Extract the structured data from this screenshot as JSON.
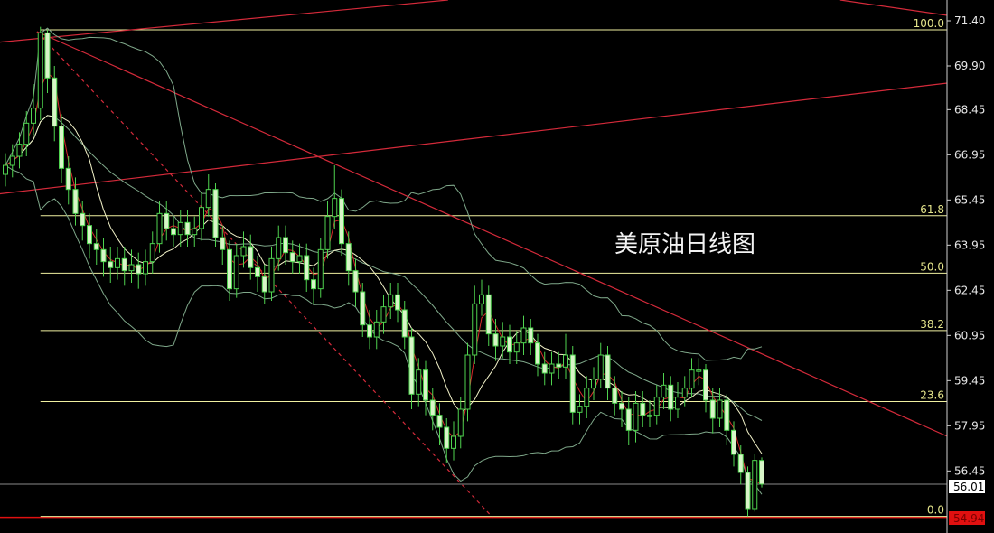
{
  "chart_data": {
    "type": "candlestick",
    "title": "美原油日线图",
    "ylim": [
      54.39,
      72.09
    ],
    "y_ticks": [
      "71.40",
      "69.90",
      "68.45",
      "66.95",
      "65.45",
      "63.95",
      "62.45",
      "60.95",
      "59.45",
      "57.95",
      "56.45"
    ],
    "current_price": "56.01",
    "low_marker": "54.94",
    "grid": false,
    "colors": {
      "background": "#000000",
      "candle": "#4fd34f",
      "bear_body": "#d8f5c8",
      "fast_ma": "#d42a2a",
      "slow_ma": "#f2f2c8",
      "bands": "#7fa88a",
      "trendline": "#d42a3a",
      "fibonacci": "#f0f0a0",
      "current_price_line": "#8a8a8a",
      "low_marker_bg": "#e01010"
    },
    "overlays": [
      "bollinger_bands",
      "fast_moving_average",
      "slow_moving_average"
    ],
    "fibonacci": {
      "high": 71.1,
      "low": 54.94,
      "start_index": 5,
      "levels": [
        {
          "value": 100.0,
          "label": "100.0"
        },
        {
          "value": 61.8,
          "label": "61.8"
        },
        {
          "value": 50.0,
          "label": "50.0"
        },
        {
          "value": 38.2,
          "label": "38.2"
        },
        {
          "value": 23.6,
          "label": "23.6"
        },
        {
          "value": 0.0,
          "label": "0.0"
        }
      ]
    },
    "trendlines": [
      {
        "from": [
          -1.3,
          70.68
        ],
        "to": [
          63.2,
          72.09
        ],
        "style": "solid"
      },
      {
        "from": [
          -1.3,
          65.64
        ],
        "to": [
          134.5,
          69.33
        ],
        "style": "solid"
      },
      {
        "from": [
          4.5,
          71.04
        ],
        "to": [
          134.5,
          57.6
        ],
        "style": "solid"
      },
      {
        "from": [
          119.2,
          72.09
        ],
        "to": [
          134.5,
          71.58
        ],
        "style": "solid"
      },
      {
        "from": [
          4.5,
          71.04
        ],
        "to": [
          69.6,
          54.9
        ],
        "style": "dashed"
      }
    ],
    "ohlc_columns": [
      "open",
      "high",
      "low",
      "close"
    ],
    "ohlc": [
      [
        66.3,
        67.0,
        65.9,
        66.6
      ],
      [
        66.6,
        67.3,
        66.2,
        66.9
      ],
      [
        66.9,
        67.7,
        66.5,
        67.3
      ],
      [
        67.3,
        68.4,
        66.9,
        68.0
      ],
      [
        68.0,
        69.3,
        67.6,
        68.5
      ],
      [
        68.5,
        71.2,
        68.1,
        71.0
      ],
      [
        71.0,
        71.1,
        69.0,
        69.5
      ],
      [
        69.5,
        69.9,
        67.4,
        67.9
      ],
      [
        67.9,
        68.3,
        66.0,
        66.5
      ],
      [
        66.5,
        66.9,
        65.3,
        65.8
      ],
      [
        65.8,
        66.2,
        64.6,
        65.0
      ],
      [
        65.0,
        65.4,
        64.1,
        64.6
      ],
      [
        64.6,
        65.0,
        63.5,
        64.0
      ],
      [
        64.0,
        64.5,
        63.3,
        63.8
      ],
      [
        63.8,
        64.2,
        62.9,
        63.4
      ],
      [
        63.4,
        63.9,
        62.7,
        63.2
      ],
      [
        63.2,
        63.9,
        62.8,
        63.5
      ],
      [
        63.5,
        63.9,
        62.6,
        63.1
      ],
      [
        63.1,
        63.8,
        62.7,
        63.3
      ],
      [
        63.3,
        63.7,
        62.5,
        63.0
      ],
      [
        63.0,
        63.8,
        62.6,
        63.4
      ],
      [
        63.4,
        64.4,
        63.0,
        64.0
      ],
      [
        64.0,
        65.4,
        63.7,
        65.0
      ],
      [
        65.0,
        65.4,
        64.1,
        64.5
      ],
      [
        64.5,
        64.9,
        63.9,
        64.3
      ],
      [
        64.3,
        65.1,
        63.9,
        64.7
      ],
      [
        64.7,
        65.1,
        63.9,
        64.3
      ],
      [
        64.3,
        64.9,
        63.9,
        64.5
      ],
      [
        64.5,
        65.7,
        64.1,
        65.2
      ],
      [
        65.2,
        66.3,
        64.9,
        65.8
      ],
      [
        65.8,
        66.0,
        63.9,
        64.2
      ],
      [
        64.2,
        64.6,
        63.3,
        63.8
      ],
      [
        63.8,
        64.1,
        62.1,
        62.5
      ],
      [
        62.5,
        64.0,
        62.2,
        63.6
      ],
      [
        63.6,
        64.4,
        63.2,
        63.9
      ],
      [
        63.9,
        64.3,
        62.8,
        63.2
      ],
      [
        63.2,
        63.6,
        62.4,
        62.9
      ],
      [
        62.9,
        63.3,
        62.0,
        62.4
      ],
      [
        62.4,
        63.9,
        62.1,
        63.5
      ],
      [
        63.5,
        64.6,
        63.1,
        64.2
      ],
      [
        64.2,
        64.6,
        63.3,
        63.7
      ],
      [
        63.7,
        64.1,
        63.0,
        63.4
      ],
      [
        63.4,
        64.0,
        63.0,
        63.6
      ],
      [
        63.6,
        64.0,
        62.4,
        62.8
      ],
      [
        62.8,
        63.2,
        62.0,
        62.5
      ],
      [
        62.5,
        64.2,
        62.2,
        63.8
      ],
      [
        63.8,
        65.4,
        63.5,
        64.9
      ],
      [
        64.9,
        66.6,
        64.5,
        65.5
      ],
      [
        65.5,
        65.8,
        63.6,
        64.0
      ],
      [
        64.0,
        64.4,
        62.6,
        63.1
      ],
      [
        63.1,
        63.5,
        61.9,
        62.4
      ],
      [
        62.4,
        62.7,
        60.9,
        61.3
      ],
      [
        61.3,
        61.8,
        60.5,
        60.9
      ],
      [
        60.9,
        61.8,
        60.5,
        61.4
      ],
      [
        61.4,
        62.3,
        61.0,
        61.9
      ],
      [
        61.9,
        62.7,
        61.5,
        62.3
      ],
      [
        62.3,
        62.7,
        61.4,
        61.8
      ],
      [
        61.8,
        62.1,
        60.5,
        60.9
      ],
      [
        60.9,
        61.2,
        58.5,
        59.0
      ],
      [
        59.0,
        60.2,
        58.6,
        59.8
      ],
      [
        59.8,
        60.1,
        58.3,
        58.8
      ],
      [
        58.8,
        59.2,
        57.8,
        58.3
      ],
      [
        58.3,
        58.7,
        57.3,
        57.9
      ],
      [
        57.9,
        58.2,
        56.7,
        57.2
      ],
      [
        57.2,
        58.1,
        56.8,
        57.6
      ],
      [
        57.6,
        58.9,
        57.2,
        58.5
      ],
      [
        58.5,
        60.7,
        58.1,
        60.3
      ],
      [
        60.3,
        62.6,
        60.0,
        62.0
      ],
      [
        62.0,
        62.8,
        61.6,
        62.3
      ],
      [
        62.3,
        62.6,
        60.6,
        61.0
      ],
      [
        61.0,
        61.5,
        60.1,
        60.6
      ],
      [
        60.6,
        61.4,
        60.2,
        60.9
      ],
      [
        60.9,
        61.3,
        60.0,
        60.4
      ],
      [
        60.4,
        61.1,
        60.0,
        60.7
      ],
      [
        60.7,
        61.6,
        60.3,
        61.2
      ],
      [
        61.2,
        61.5,
        60.3,
        60.7
      ],
      [
        60.7,
        61.0,
        59.6,
        60.0
      ],
      [
        60.0,
        60.4,
        59.3,
        59.7
      ],
      [
        59.7,
        60.4,
        59.3,
        60.0
      ],
      [
        60.0,
        60.4,
        59.5,
        59.9
      ],
      [
        59.9,
        61.0,
        59.5,
        60.3
      ],
      [
        60.3,
        60.6,
        58.0,
        58.4
      ],
      [
        58.4,
        59.0,
        58.0,
        58.6
      ],
      [
        58.6,
        59.6,
        58.2,
        59.2
      ],
      [
        59.2,
        59.9,
        58.8,
        59.5
      ],
      [
        59.5,
        60.7,
        59.2,
        60.3
      ],
      [
        60.3,
        60.6,
        58.8,
        59.2
      ],
      [
        59.2,
        59.6,
        58.3,
        58.7
      ],
      [
        58.7,
        59.1,
        57.9,
        58.5
      ],
      [
        58.5,
        58.9,
        57.3,
        57.8
      ],
      [
        57.8,
        59.1,
        57.4,
        58.7
      ],
      [
        58.7,
        59.1,
        57.9,
        58.3
      ],
      [
        58.3,
        58.8,
        57.9,
        58.3
      ],
      [
        58.3,
        59.3,
        58.0,
        58.9
      ],
      [
        58.9,
        59.7,
        58.5,
        59.3
      ],
      [
        59.3,
        59.6,
        58.1,
        58.5
      ],
      [
        58.5,
        59.4,
        58.2,
        58.9
      ],
      [
        58.9,
        59.6,
        58.6,
        59.2
      ],
      [
        59.2,
        60.2,
        58.9,
        59.8
      ],
      [
        59.8,
        60.2,
        59.3,
        59.8
      ],
      [
        59.8,
        60.0,
        58.4,
        58.8
      ],
      [
        58.8,
        59.2,
        57.7,
        58.2
      ],
      [
        58.2,
        59.2,
        57.9,
        58.8
      ],
      [
        58.8,
        59.0,
        57.3,
        57.8
      ],
      [
        57.8,
        58.1,
        56.6,
        57.0
      ],
      [
        57.0,
        57.3,
        56.0,
        56.4
      ],
      [
        56.4,
        56.6,
        54.94,
        55.2
      ],
      [
        55.2,
        57.0,
        55.1,
        56.8
      ],
      [
        56.8,
        56.9,
        55.9,
        56.01
      ]
    ]
  }
}
